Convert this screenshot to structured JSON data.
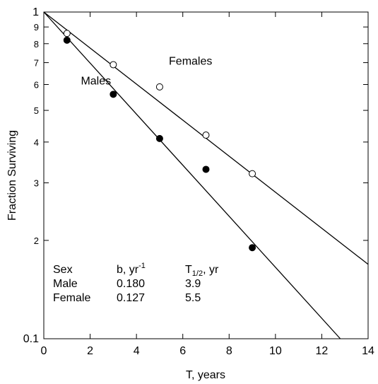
{
  "chart_data": {
    "type": "scatter",
    "xlabel": "T, years",
    "ylabel": "Fraction Surviving",
    "xlim": [
      0,
      14
    ],
    "ylim": [
      0.1,
      1
    ],
    "log_y": true,
    "xticks": [
      0,
      2,
      4,
      6,
      8,
      10,
      12,
      14
    ],
    "yticks": [
      0.1,
      {
        "value": 0.2,
        "label": "2"
      },
      {
        "value": 0.3,
        "label": "3"
      },
      {
        "value": 0.4,
        "label": "4"
      },
      {
        "value": 0.5,
        "label": "5"
      },
      {
        "value": 0.6,
        "label": "6"
      },
      {
        "value": 0.7,
        "label": "7"
      },
      {
        "value": 0.8,
        "label": "8"
      },
      {
        "value": 0.9,
        "label": "9"
      },
      1
    ],
    "series": [
      {
        "name": "Females",
        "marker": "open",
        "color": "#000000",
        "x": [
          1,
          3,
          5,
          7,
          9
        ],
        "values": [
          0.86,
          0.69,
          0.59,
          0.42,
          0.32
        ]
      },
      {
        "name": "Males",
        "marker": "filled",
        "color": "#000000",
        "x": [
          1,
          3,
          5,
          7,
          9
        ],
        "values": [
          0.82,
          0.56,
          0.41,
          0.33,
          0.19
        ]
      }
    ],
    "fit_lines": [
      {
        "x": [
          0,
          14
        ],
        "values": [
          1,
          0.169
        ]
      },
      {
        "x": [
          0,
          12.8
        ],
        "values": [
          1,
          0.1
        ]
      }
    ],
    "table": {
      "header": [
        {
          "text": "Sex"
        },
        {
          "text": "b, yr",
          "sup": "-1"
        },
        {
          "text": "T",
          "sub": "1/2",
          "after": ", yr"
        }
      ],
      "rows": [
        [
          "Male",
          "0.180",
          "3.9"
        ],
        [
          "Female",
          "0.127",
          "5.5"
        ]
      ]
    }
  }
}
